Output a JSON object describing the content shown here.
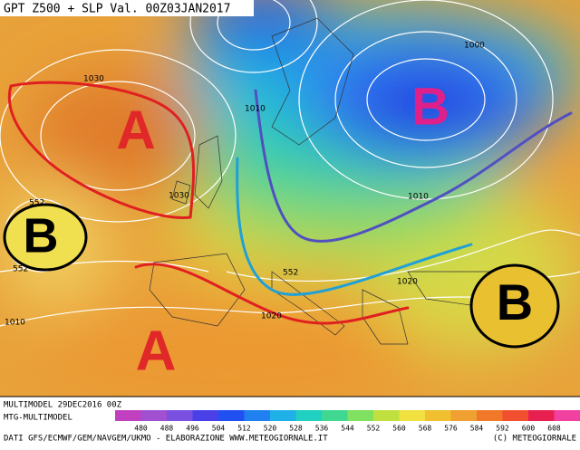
{
  "header": {
    "title": "GPT Z500 + SLP Val. 00Z03JAN2017"
  },
  "map": {
    "contour_labels": [
      "1030",
      "1000",
      "1010",
      "1030",
      "552",
      "552",
      "1010",
      "552",
      "1020",
      "1020",
      "1010"
    ],
    "pressure_centers": [
      "A",
      "B",
      "B",
      "A",
      "B"
    ]
  },
  "legend": {
    "ticks": [
      "480",
      "488",
      "496",
      "504",
      "512",
      "520",
      "528",
      "536",
      "544",
      "552",
      "560",
      "568",
      "576",
      "584",
      "592",
      "600",
      "608"
    ]
  },
  "footer": {
    "model_run": "MULTIMODEL 29DEC2016 00Z",
    "model": "MTG-MULTIMODEL",
    "sources": "DATI GFS/ECMWF/GEM/NAVGEM/UKMO - ELABORAZIONE WWW.METEOGIORNALE.IT",
    "copyright": "(C) METEOGIORNALE"
  }
}
